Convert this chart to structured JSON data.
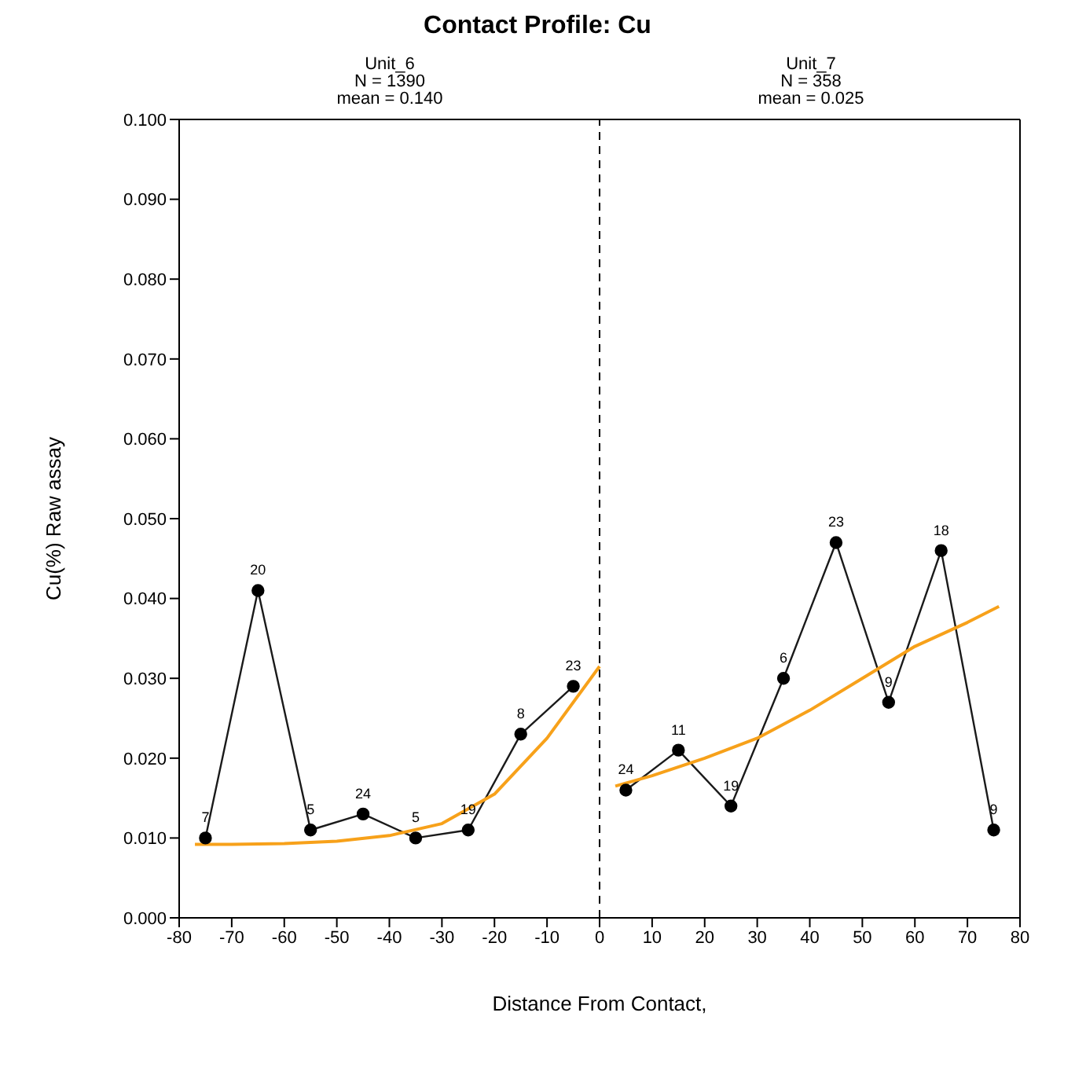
{
  "chart_data": {
    "type": "line",
    "title": "Contact Profile: Cu",
    "xlabel": "Distance From Contact,",
    "ylabel": "Cu(%) Raw assay",
    "annotations": [
      "Unit_6",
      "N = 1390",
      "mean = 0.140",
      "Unit_7",
      "N = 358",
      "mean = 0.025",
      {
        "text": "7",
        "x": -75,
        "y": 0.01
      },
      {
        "text": "20",
        "x": -65,
        "y": 0.041
      },
      {
        "text": "5",
        "x": -55,
        "y": 0.011
      },
      {
        "text": "24",
        "x": -45,
        "y": 0.013
      },
      {
        "text": "5",
        "x": -35,
        "y": 0.01
      },
      {
        "text": "19",
        "x": -25,
        "y": 0.011
      },
      {
        "text": "8",
        "x": -15,
        "y": 0.023
      },
      {
        "text": "23",
        "x": -5,
        "y": 0.029
      },
      {
        "text": "24",
        "x": 5,
        "y": 0.016
      },
      {
        "text": "11",
        "x": 15,
        "y": 0.021
      },
      {
        "text": "19",
        "x": 25,
        "y": 0.014
      },
      {
        "text": "6",
        "x": 35,
        "y": 0.03
      },
      {
        "text": "23",
        "x": 45,
        "y": 0.047
      },
      {
        "text": "9",
        "x": 55,
        "y": 0.027
      },
      {
        "text": "18",
        "x": 65,
        "y": 0.046
      },
      {
        "text": "9",
        "x": 75,
        "y": 0.011
      }
    ],
    "xlim": [
      -80,
      80
    ],
    "xticks": [
      -80,
      -70,
      -60,
      -50,
      -40,
      -30,
      -20,
      -10,
      0,
      10,
      20,
      30,
      40,
      50,
      60,
      70,
      80
    ],
    "ylim": [
      0,
      0.1
    ],
    "yticks": [
      {
        "value": 0,
        "label": "0.000"
      },
      {
        "value": 0.01,
        "label": "0.010"
      },
      {
        "value": 0.02,
        "label": "0.020"
      },
      {
        "value": 0.03,
        "label": "0.030"
      },
      {
        "value": 0.04,
        "label": "0.040"
      },
      {
        "value": 0.05,
        "label": "0.050"
      },
      {
        "value": 0.06,
        "label": "0.060"
      },
      {
        "value": 0.07,
        "label": "0.070"
      },
      {
        "value": 0.08,
        "label": "0.080"
      },
      {
        "value": 0.09,
        "label": "0.090"
      },
      {
        "value": 0.1,
        "label": "0.100"
      }
    ],
    "ref_lines": [
      {
        "axis": "x",
        "value": 0,
        "label": null,
        "color": "#000000",
        "line_style": "dashed"
      }
    ],
    "series": [
      {
        "type": "line",
        "color": "#1a1a1a",
        "marker": "circle",
        "x": [
          -75,
          -65,
          -55,
          -45,
          -35,
          -25,
          -15,
          -5
        ],
        "values": [
          0.01,
          0.041,
          0.011,
          0.013,
          0.01,
          0.011,
          0.023,
          0.029
        ]
      },
      {
        "type": "line",
        "color": "#1a1a1a",
        "marker": "circle",
        "x": [
          5,
          15,
          25,
          35,
          45,
          55,
          65,
          75
        ],
        "values": [
          0.016,
          0.021,
          0.014,
          0.03,
          0.047,
          0.027,
          0.046,
          0.011
        ]
      },
      {
        "type": "line",
        "color": "#f7a11a",
        "marker": "none",
        "x": [
          -77,
          -70,
          -60,
          -50,
          -40,
          -30,
          -20,
          -10,
          0
        ],
        "values": [
          0.0092,
          0.0092,
          0.0093,
          0.0096,
          0.0103,
          0.0118,
          0.0155,
          0.0225,
          0.0315
        ]
      },
      {
        "type": "line",
        "color": "#f7a11a",
        "marker": "none",
        "x": [
          3,
          10,
          20,
          30,
          40,
          50,
          60,
          70,
          76
        ],
        "values": [
          0.0165,
          0.0178,
          0.02,
          0.0225,
          0.026,
          0.03,
          0.034,
          0.037,
          0.039
        ]
      }
    ]
  }
}
